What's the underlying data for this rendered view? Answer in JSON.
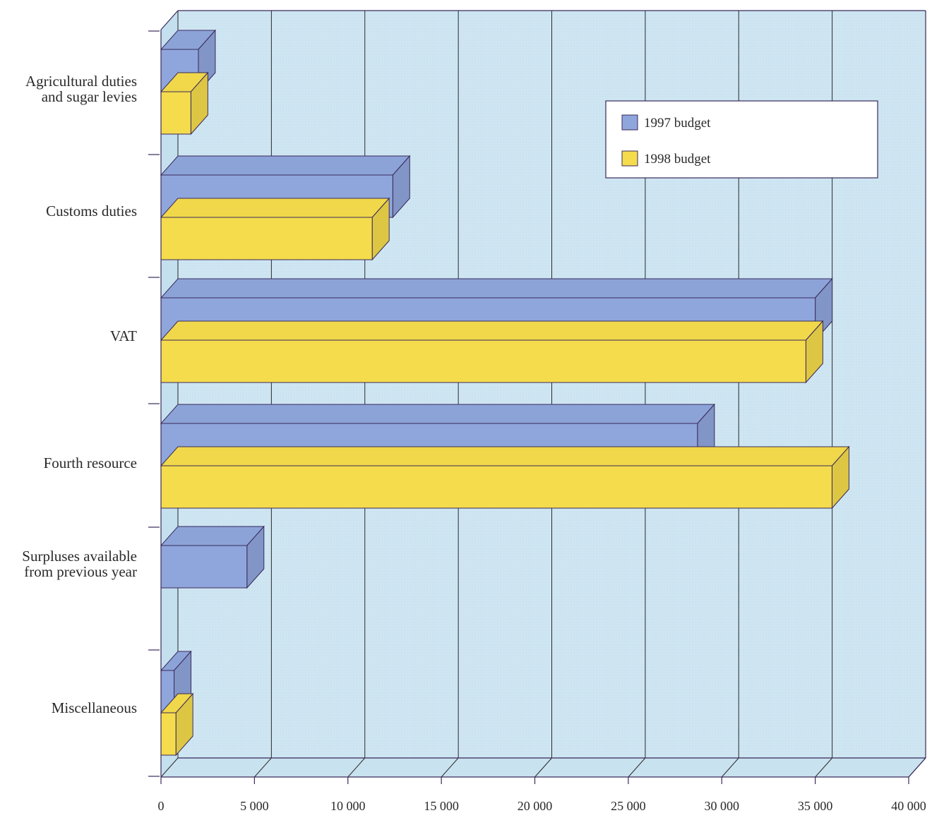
{
  "chart_data": {
    "type": "bar",
    "orientation": "horizontal",
    "style": "3d",
    "categories": [
      "Agricultural duties\nand sugar levies",
      "Customs duties",
      "VAT",
      "Fourth resource",
      "Surpluses available\nfrom previous year",
      "Miscellaneous"
    ],
    "series": [
      {
        "name": "1997 budget",
        "values": [
          2000,
          12400,
          35000,
          28700,
          4600,
          700
        ]
      },
      {
        "name": "1998 budget",
        "values": [
          1600,
          11300,
          34500,
          35900,
          0,
          800
        ]
      }
    ],
    "xlim": [
      0,
      40000
    ],
    "x_ticks": [
      "0",
      "5 000",
      "10 000",
      "15 000",
      "20 000",
      "25 000",
      "30 000",
      "35 000",
      "40 000"
    ],
    "grid": true,
    "legend_position": "top-right",
    "colors": {
      "1997 budget": "#8fa6dc",
      "1998 budget": "#f5dc4c",
      "plot_background": "#cfe6f2"
    }
  }
}
